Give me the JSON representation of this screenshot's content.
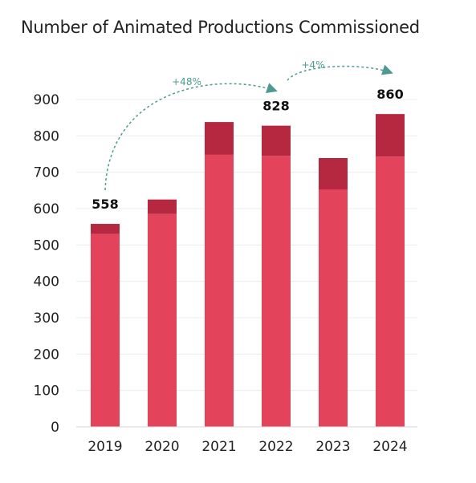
{
  "chart_data": {
    "type": "bar",
    "title": "Number of Animated Productions Commissioned",
    "categories": [
      "2019",
      "2020",
      "2021",
      "2022",
      "2023",
      "2024"
    ],
    "series": [
      {
        "values": [
          530,
          585,
          748,
          745,
          652,
          743
        ],
        "color": "#e3445c"
      },
      {
        "values": [
          28,
          40,
          90,
          83,
          87,
          117
        ],
        "color": "#b5283f"
      }
    ],
    "totals": [
      558,
      625,
      838,
      828,
      739,
      860
    ],
    "data_labels": [
      {
        "category": "2019",
        "text": "558"
      },
      {
        "category": "2022",
        "text": "828"
      },
      {
        "category": "2024",
        "text": "860"
      }
    ],
    "annotations": [
      {
        "from": "2019",
        "to": "2022",
        "text": "+48%"
      },
      {
        "from": "2022",
        "to": "2024",
        "text": "+4%"
      }
    ],
    "yticks": [
      0,
      100,
      200,
      300,
      400,
      500,
      600,
      700,
      800,
      900
    ],
    "ylim": [
      0,
      900
    ],
    "xlabel": "",
    "ylabel": "",
    "grid": true,
    "legend": false,
    "annotation_color": "#4e9a92"
  }
}
